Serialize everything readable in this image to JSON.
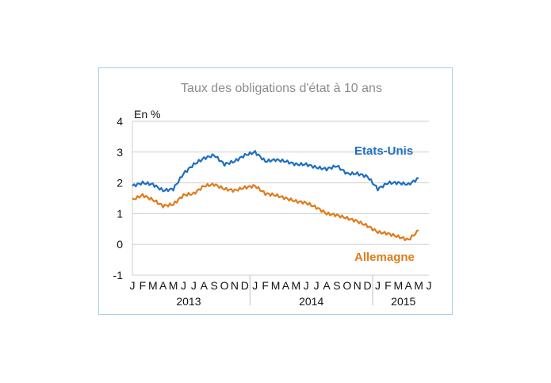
{
  "chart_data": {
    "type": "line",
    "title": "Taux des obligations d'état à 10 ans",
    "ylabel": "En %",
    "xlabel": "",
    "ylim": [
      -1,
      4
    ],
    "yticks": [
      "4",
      "3",
      "2",
      "1",
      "0",
      "-1"
    ],
    "grid": true,
    "x_month_labels": [
      "J",
      "F",
      "M",
      "A",
      "M",
      "J",
      "J",
      "A",
      "S",
      "O",
      "N",
      "D",
      "J",
      "F",
      "M",
      "A",
      "M",
      "J",
      "J",
      "A",
      "S",
      "O",
      "N",
      "D",
      "J",
      "F",
      "M",
      "A",
      "M",
      "J"
    ],
    "x_year_labels": [
      "2013",
      "2014",
      "2015"
    ],
    "x": [
      "2013-01",
      "2013-02",
      "2013-03",
      "2013-04",
      "2013-05",
      "2013-06",
      "2013-07",
      "2013-08",
      "2013-09",
      "2013-10",
      "2013-11",
      "2013-12",
      "2014-01",
      "2014-02",
      "2014-03",
      "2014-04",
      "2014-05",
      "2014-06",
      "2014-07",
      "2014-08",
      "2014-09",
      "2014-10",
      "2014-11",
      "2014-12",
      "2015-01",
      "2015-02",
      "2015-03",
      "2015-04",
      "2015-05"
    ],
    "series": [
      {
        "name": "Etats-Unis",
        "color": "#1f6fc0",
        "values": [
          1.9,
          2.0,
          1.95,
          1.75,
          1.8,
          2.3,
          2.6,
          2.8,
          2.9,
          2.6,
          2.7,
          2.9,
          3.0,
          2.7,
          2.75,
          2.7,
          2.6,
          2.6,
          2.5,
          2.45,
          2.55,
          2.3,
          2.3,
          2.2,
          1.8,
          2.0,
          2.0,
          1.95,
          2.15
        ]
      },
      {
        "name": "Allemagne",
        "color": "#e07b1b",
        "values": [
          1.45,
          1.6,
          1.45,
          1.25,
          1.3,
          1.6,
          1.65,
          1.9,
          1.95,
          1.8,
          1.75,
          1.85,
          1.9,
          1.65,
          1.6,
          1.5,
          1.4,
          1.35,
          1.2,
          1.0,
          0.95,
          0.85,
          0.75,
          0.6,
          0.4,
          0.35,
          0.25,
          0.15,
          0.45
        ]
      }
    ]
  }
}
